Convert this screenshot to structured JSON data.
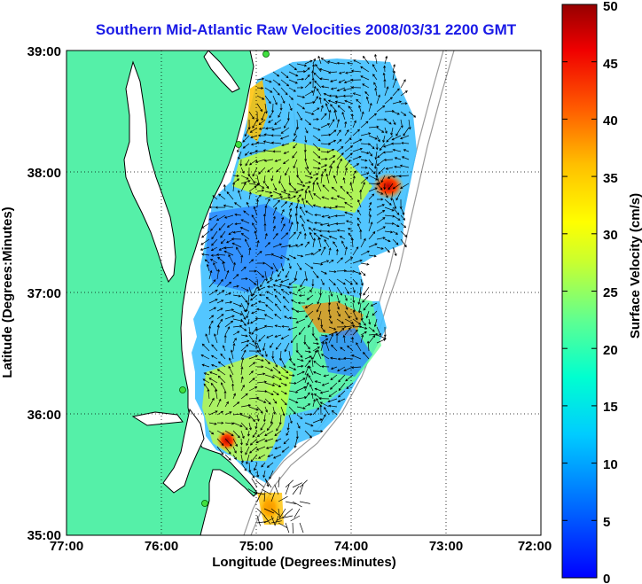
{
  "title": "Southern Mid-Atlantic Raw Velocities 2008/03/31 2200 GMT",
  "x_axis": {
    "label": "Longitude (Degrees:Minutes)",
    "ticks": [
      "77:00",
      "76:00",
      "75:00",
      "74:00",
      "73:00",
      "72:00"
    ]
  },
  "y_axis": {
    "label": "Latitude (Degrees:Minutes)",
    "ticks": [
      "39:00",
      "38:00",
      "37:00",
      "36:00",
      "35:00"
    ]
  },
  "colorbar": {
    "label": "Surface Velocity (cm/s)",
    "ticks": [
      "0",
      "5",
      "10",
      "15",
      "20",
      "25",
      "30",
      "35",
      "40",
      "45",
      "50"
    ],
    "range": [
      0,
      50
    ],
    "colormap": "jet"
  },
  "colors": {
    "land": "#55f0a8",
    "ocean": "#ffffff",
    "coastline": "#000000",
    "bathymetry": "#9a9a9a",
    "title": "#1a1ae6"
  },
  "map": {
    "lon_range": [
      -77.0,
      -72.0
    ],
    "lat_range": [
      35.0,
      39.0
    ],
    "grid": "dotted",
    "radar_sites": 4
  }
}
